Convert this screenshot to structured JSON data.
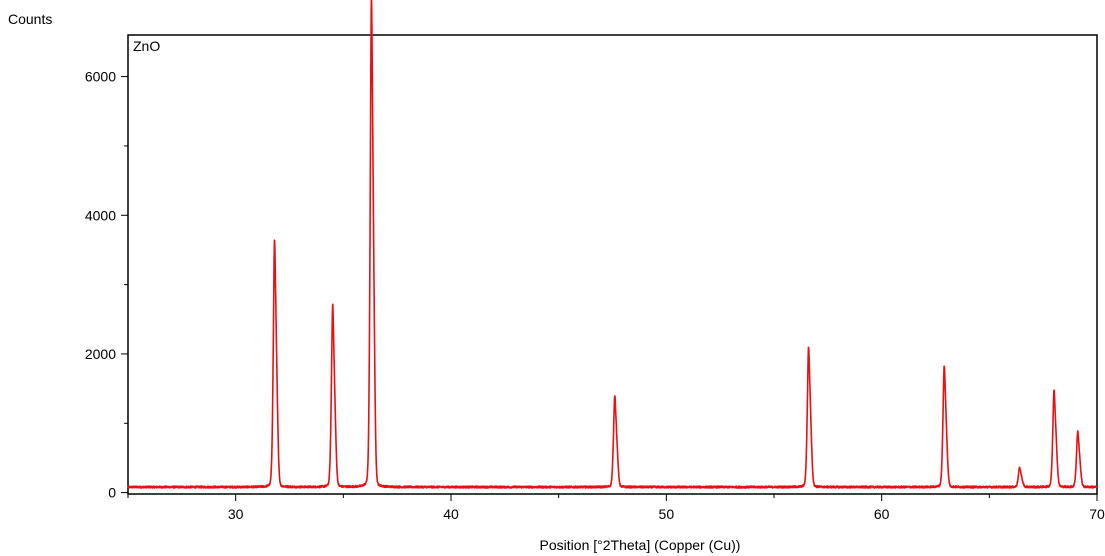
{
  "chart_data": {
    "type": "line",
    "title": "",
    "sample_label": "ZnO",
    "ylabel": "Counts",
    "xlabel": "Position [°2Theta] (Copper (Cu))",
    "xlim": [
      25,
      70
    ],
    "ylim": [
      -20,
      6600
    ],
    "x_ticks": [
      30,
      40,
      50,
      60,
      70
    ],
    "y_ticks": [
      0,
      2000,
      4000,
      6000
    ],
    "grid": false,
    "legend": "none",
    "line_color": "#e81010",
    "baseline": 80,
    "series": [
      {
        "peaks": [
          {
            "x": 31.8,
            "y": 3300
          },
          {
            "x": 34.5,
            "y": 2450
          },
          {
            "x": 36.3,
            "y": 6450
          },
          {
            "x": 47.6,
            "y": 1280
          },
          {
            "x": 56.6,
            "y": 1900
          },
          {
            "x": 62.9,
            "y": 1660
          },
          {
            "x": 66.4,
            "y": 330
          },
          {
            "x": 68.0,
            "y": 1350
          },
          {
            "x": 69.1,
            "y": 800
          }
        ]
      }
    ]
  }
}
